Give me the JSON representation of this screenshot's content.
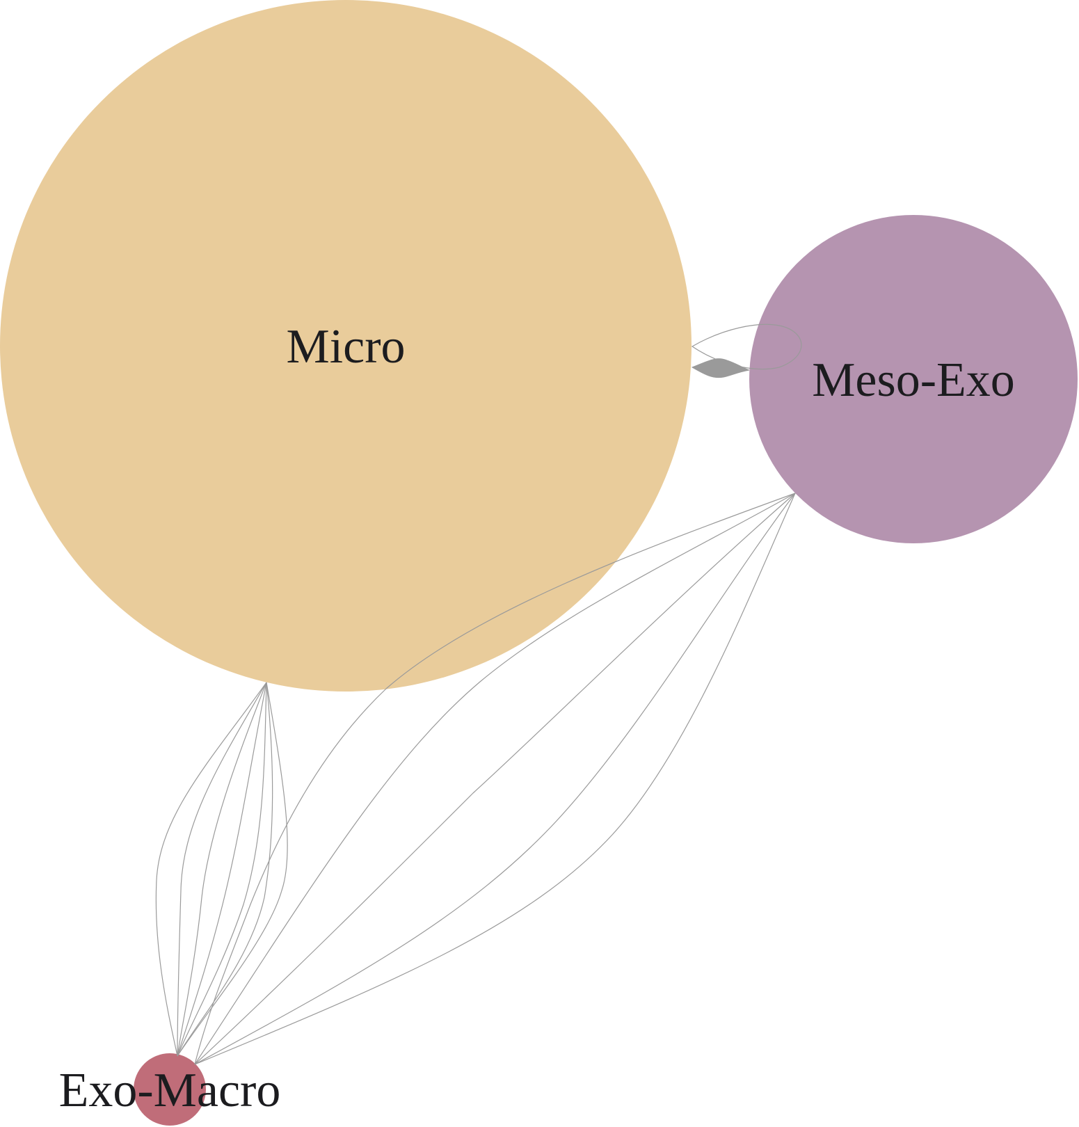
{
  "diagram": {
    "nodes": [
      {
        "id": "micro",
        "label": "Micro",
        "color": "#e9cc9b"
      },
      {
        "id": "meso_exo",
        "label": "Meso-Exo",
        "color": "#b594b0"
      },
      {
        "id": "exo_macro",
        "label": "Exo-Macro",
        "color": "#c06d79"
      }
    ],
    "edges": [
      {
        "from": "micro",
        "to": "meso_exo",
        "count": 1,
        "style": "thin-loop"
      },
      {
        "from": "micro",
        "to": "meso_exo",
        "count": 1,
        "style": "thick"
      },
      {
        "from": "micro",
        "to": "exo_macro",
        "count": 7,
        "style": "thin"
      },
      {
        "from": "meso_exo",
        "to": "exo_macro",
        "count": 5,
        "style": "thin"
      }
    ],
    "edge_color": "#9a9a9a",
    "background": "#ffffff"
  }
}
